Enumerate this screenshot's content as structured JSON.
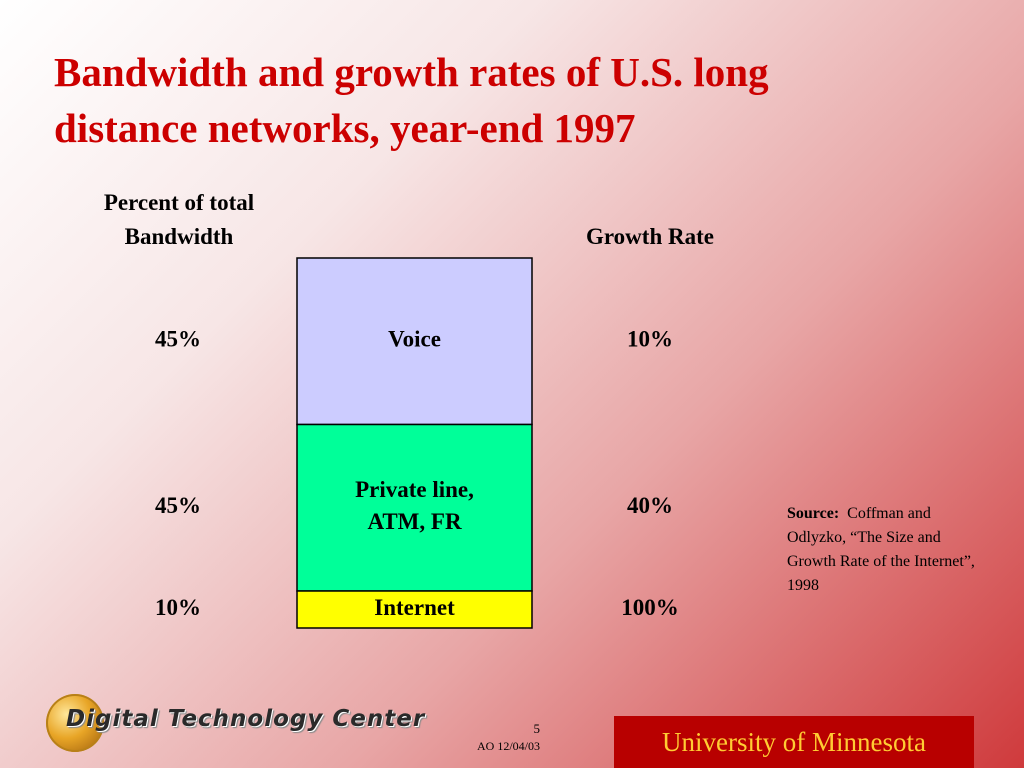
{
  "slide": {
    "title_line1": "Bandwidth and growth rates of U.S. long",
    "title_line2": "distance networks, year-end 1997",
    "page_number": "5",
    "footer_id": "AO 12/04/03",
    "org_name": "University of Minnesota",
    "logo_text": "Digital Technology Center",
    "title_color": "#cc0000"
  },
  "source": {
    "label": "Source:",
    "text": "Coffman and Odlyzko, “The Size and Growth Rate of the Internet”, 1998"
  },
  "chart_data": {
    "type": "table",
    "left_header_line1": "Percent of total",
    "left_header_line2": "Bandwidth",
    "right_header": "Growth Rate",
    "rows": [
      {
        "segment": "Voice",
        "share_label": "45%",
        "growth_label": "10%",
        "share": 45,
        "growth": 10,
        "color": "#ccccff"
      },
      {
        "segment": "Private line,\nATM, FR",
        "share_label": "45%",
        "growth_label": "40%",
        "share": 45,
        "growth": 40,
        "color": "#00ff99"
      },
      {
        "segment": "Internet",
        "share_label": "10%",
        "growth_label": "100%",
        "share": 10,
        "growth": 100,
        "color": "#ffff00"
      }
    ]
  }
}
